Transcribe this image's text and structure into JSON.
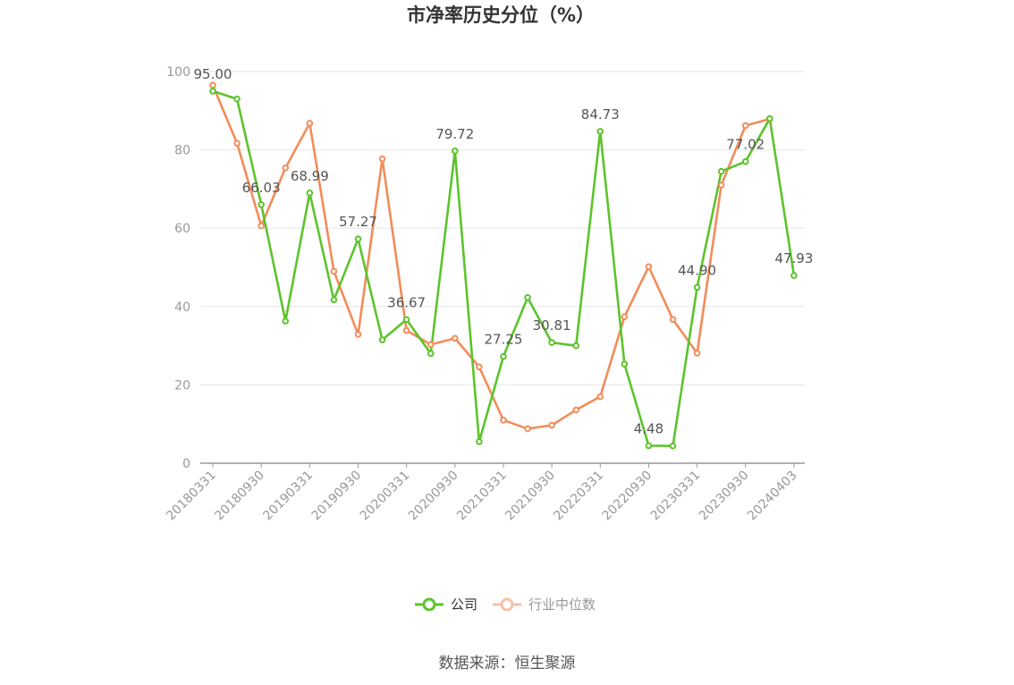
{
  "chart_data": {
    "type": "line",
    "title": "市净率历史分位（%）",
    "ylim": [
      0,
      100
    ],
    "y_ticks": [
      0,
      20,
      40,
      60,
      80,
      100
    ],
    "x": [
      "20180331",
      "20180630",
      "20180930",
      "20181231",
      "20190331",
      "20190630",
      "20190930",
      "20191231",
      "20200331",
      "20200630",
      "20200930",
      "20201231",
      "20210331",
      "20210630",
      "20210930",
      "20211231",
      "20220331",
      "20220630",
      "20220930",
      "20221231",
      "20230331",
      "20230630",
      "20230930",
      "20231231",
      "20240403"
    ],
    "x_tick_labels": [
      "20180331",
      "20180930",
      "20190331",
      "20190930",
      "20200331",
      "20200930",
      "20210331",
      "20210930",
      "20220331",
      "20220930",
      "20230331",
      "20230930",
      "20240403"
    ],
    "x_tick_indices": [
      0,
      2,
      4,
      6,
      8,
      10,
      12,
      14,
      16,
      18,
      20,
      22,
      24
    ],
    "grid": true,
    "legend_position": "bottom",
    "series": [
      {
        "name": "公司",
        "color": "#5cc42b",
        "values": [
          95.0,
          93.0,
          66.03,
          36.3,
          68.99,
          41.7,
          57.27,
          31.5,
          36.67,
          28.0,
          79.72,
          5.5,
          27.25,
          42.3,
          30.81,
          30.0,
          84.73,
          25.3,
          4.48,
          4.4,
          44.9,
          74.5,
          77.02,
          88.0,
          47.93
        ],
        "labels": [
          "95.00",
          "",
          "66.03",
          "",
          "68.99",
          "",
          "57.27",
          "",
          "36.67",
          "",
          "79.72",
          "",
          "27.25",
          "",
          "30.81",
          "",
          "84.73",
          "",
          "4.48",
          "",
          "44.90",
          "",
          "77.02",
          "",
          "47.93"
        ]
      },
      {
        "name": "行业中位数",
        "color": "#f28c5a",
        "values": [
          96.5,
          81.7,
          60.6,
          75.4,
          86.8,
          49.0,
          32.9,
          77.7,
          33.9,
          30.3,
          31.9,
          24.6,
          11.0,
          8.8,
          9.7,
          13.6,
          17.0,
          37.4,
          50.2,
          36.7,
          28.1,
          71.0,
          86.2,
          87.9,
          null
        ]
      }
    ]
  },
  "legend": {
    "company": "公司",
    "industry": "行业中位数"
  },
  "source_text": "数据来源：恒生聚源"
}
